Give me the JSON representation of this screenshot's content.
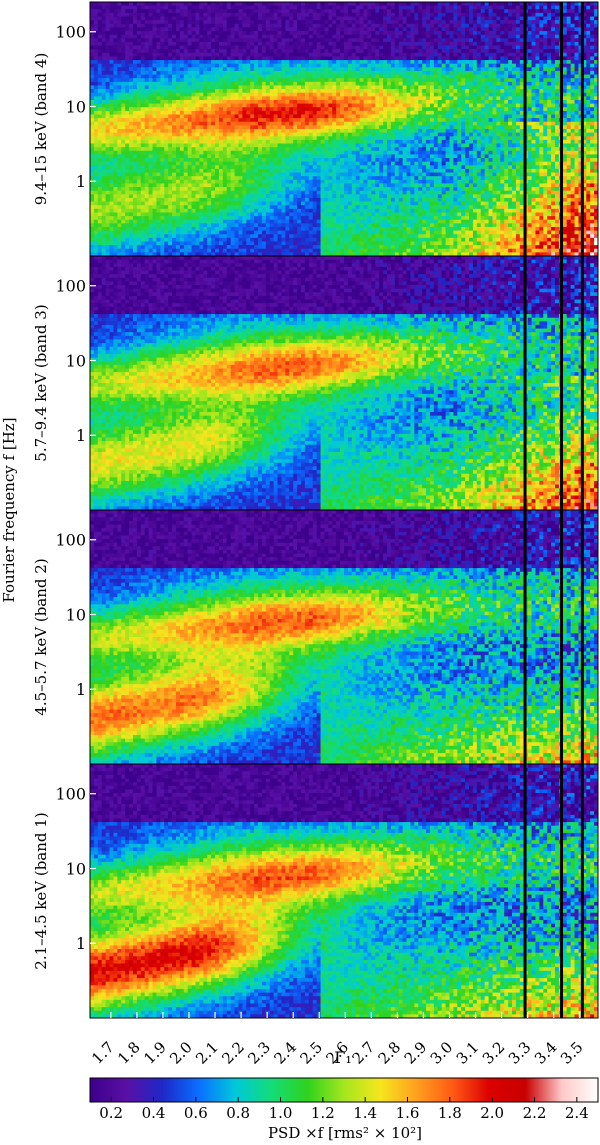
{
  "chart_data": {
    "type": "heatmap",
    "xlabel": "Γ₁",
    "ylabel": "Fourier frequency f [Hz]",
    "x_ticks": [
      "1.7",
      "1.8",
      "1.9",
      "2.0",
      "2.1",
      "2.2",
      "2.3",
      "2.4",
      "2.5",
      "2.6",
      "2.7",
      "2.8",
      "2.9",
      "3.0",
      "3.1",
      "3.2",
      "3.3",
      "3.4",
      "3.5"
    ],
    "x_tick_values": [
      1.7,
      1.8,
      1.9,
      2.0,
      2.1,
      2.2,
      2.3,
      2.4,
      2.5,
      2.6,
      2.7,
      2.8,
      2.9,
      3.0,
      3.1,
      3.2,
      3.3,
      3.4,
      3.5
    ],
    "xlim": [
      1.62,
      3.57
    ],
    "y_scale": "log",
    "ylim": [
      0.1,
      250
    ],
    "y_ticks": [
      "1",
      "10",
      "100"
    ],
    "y_tick_values": [
      1,
      10,
      100
    ],
    "colorbar": {
      "label": "PSD ×f [rms² × 10²]",
      "ticks": [
        "0.2",
        "0.4",
        "0.6",
        "0.8",
        "1.0",
        "1.2",
        "1.4",
        "1.6",
        "1.8",
        "2.0",
        "2.2",
        "2.4"
      ],
      "tick_values": [
        0.2,
        0.4,
        0.6,
        0.8,
        1.0,
        1.2,
        1.4,
        1.6,
        1.8,
        2.0,
        2.2,
        2.4
      ],
      "range": [
        0.1,
        2.5
      ],
      "colors": [
        "#3c008c",
        "#5a0fa5",
        "#1e28c8",
        "#0a6eff",
        "#00c8dc",
        "#14dc78",
        "#2fd21e",
        "#a5e61e",
        "#f5e61e",
        "#ffa01e",
        "#ff5a14",
        "#dc0000",
        "#c80000",
        "#ffc8c8",
        "#ffffff"
      ]
    },
    "vertical_lines_x": [
      3.29,
      3.43,
      3.51
    ],
    "panels": [
      {
        "label": "9.4–15 keV (band 4)",
        "band": 4
      },
      {
        "label": "5.7–9.4 keV (band 3)",
        "band": 3
      },
      {
        "label": "4.5–5.7 keV (band 2)",
        "band": 2
      },
      {
        "label": "2.1–4.5 keV (band 1)",
        "band": 1
      }
    ]
  }
}
